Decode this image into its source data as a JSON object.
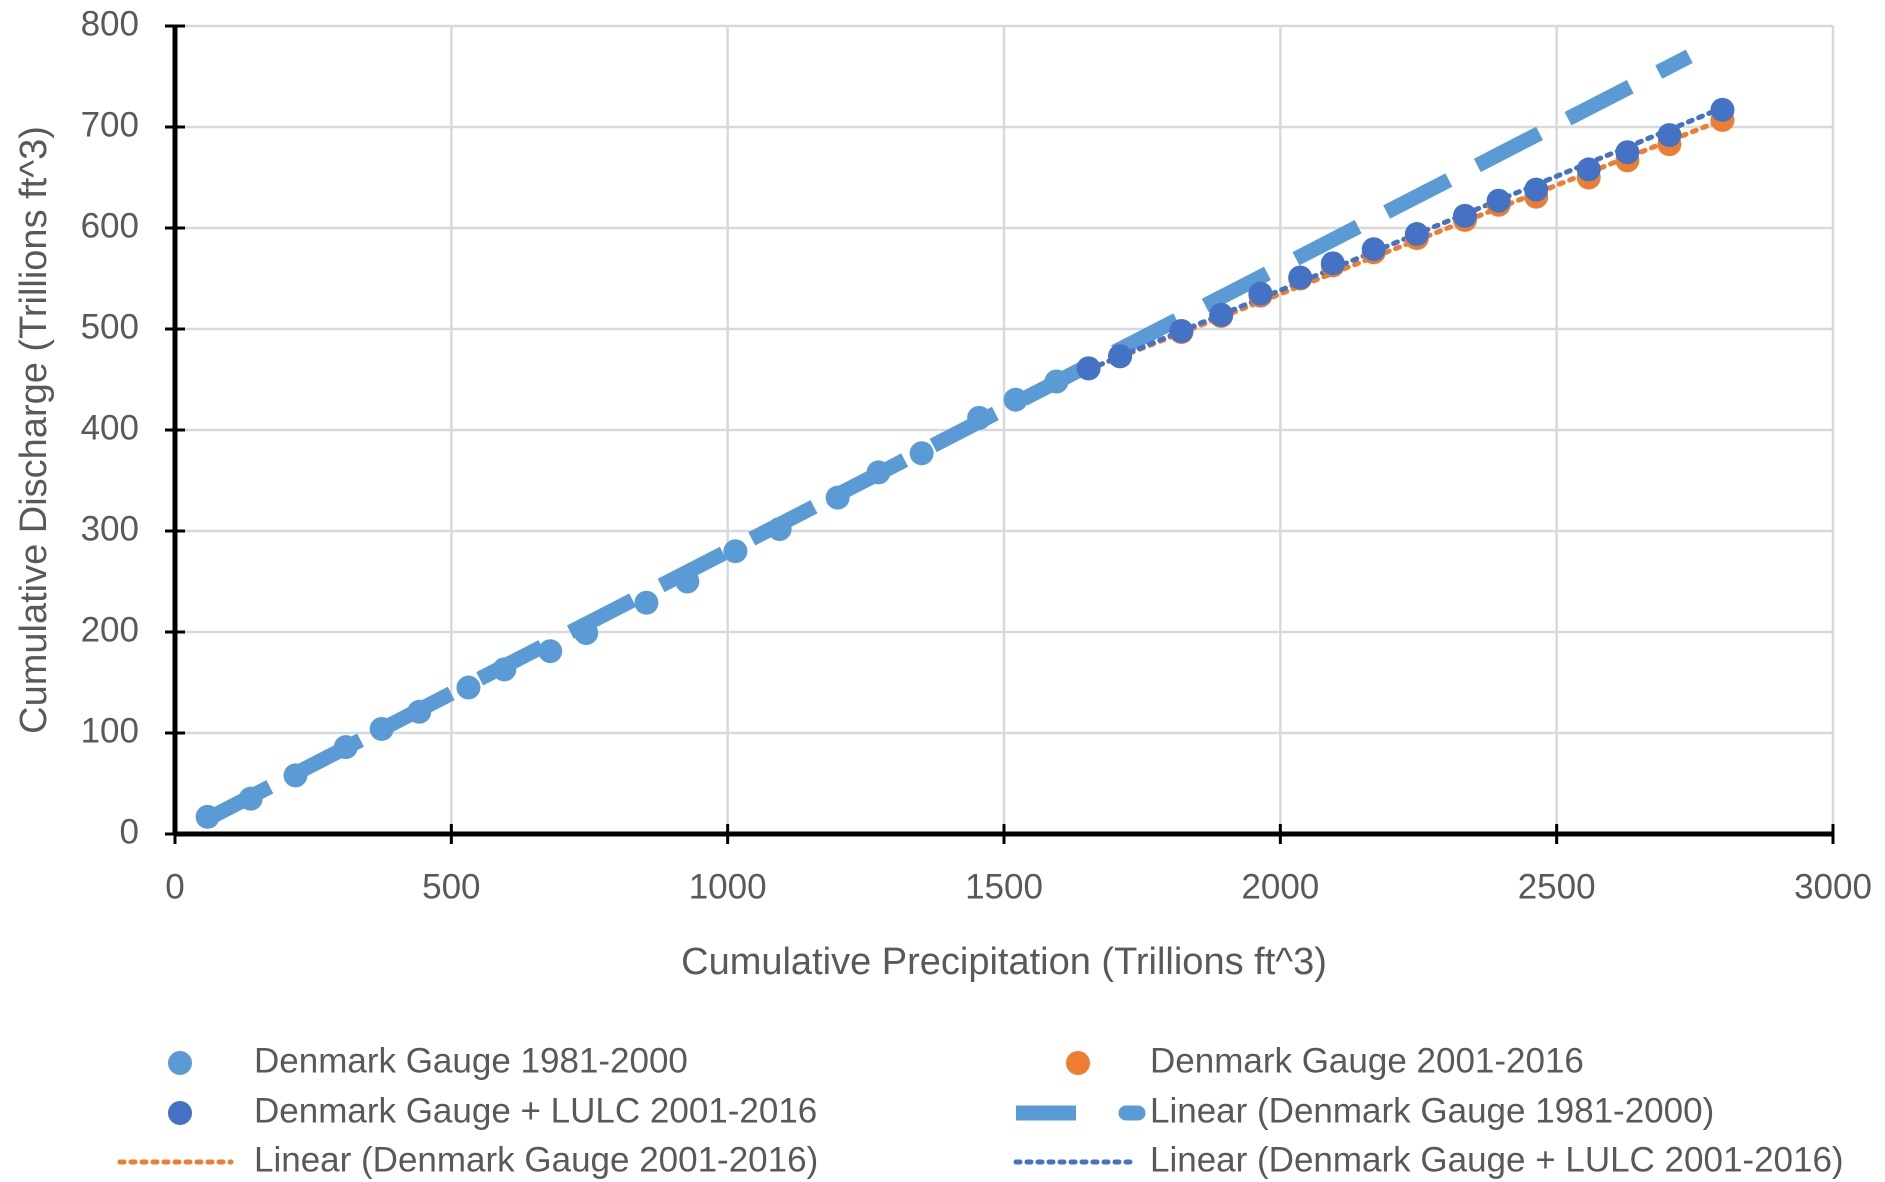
{
  "chart_data": {
    "type": "scatter",
    "xlabel": "Cumulative Precipitation (Trillions ft^3)",
    "ylabel": "Cumulative Discharge (Trillions ft^3)",
    "xlim": [
      0,
      3000
    ],
    "xticks": [
      0,
      500,
      1000,
      1500,
      2000,
      2500,
      3000
    ],
    "ylim": [
      0,
      800
    ],
    "yticks": [
      0,
      100,
      200,
      300,
      400,
      500,
      600,
      700,
      800
    ],
    "grid": true,
    "legend": "bottom",
    "series": [
      {
        "name": "Denmark Gauge 1981-2000",
        "color": "#5b9bd5",
        "style": "marker",
        "x": [
          59,
          137,
          218,
          309,
          374,
          442,
          531,
          596,
          679,
          744,
          853,
          927,
          1014,
          1094,
          1199,
          1273,
          1351,
          1455,
          1521,
          1595
        ],
        "values": [
          17,
          35,
          58,
          86,
          104,
          121,
          145,
          163,
          181,
          199,
          229,
          250,
          280,
          302,
          333,
          358,
          377,
          412,
          430,
          448
        ]
      },
      {
        "name": "Denmark Gauge 2001-2016",
        "color": "#ed7d31",
        "style": "marker",
        "x": [
          1653,
          1710,
          1821,
          1893,
          1964,
          2036,
          2095,
          2169,
          2247,
          2334,
          2395,
          2463,
          2558,
          2628,
          2704,
          2800
        ],
        "values": [
          461,
          473,
          497,
          513,
          533,
          550,
          563,
          576,
          590,
          608,
          623,
          631,
          650,
          667,
          683,
          707
        ]
      },
      {
        "name": "Denmark Gauge + LULC 2001-2016",
        "color": "#4472c4",
        "style": "marker",
        "x": [
          1653,
          1710,
          1821,
          1893,
          1964,
          2036,
          2095,
          2169,
          2247,
          2334,
          2395,
          2463,
          2558,
          2628,
          2704,
          2800
        ],
        "values": [
          461,
          473,
          498,
          514,
          535,
          551,
          565,
          579,
          594,
          612,
          627,
          638,
          658,
          675,
          692,
          717
        ]
      },
      {
        "name": "Linear (Denmark Gauge 1981-2000)",
        "color": "#5b9bd5",
        "style": "dashed",
        "x": [
          59,
          2740
        ],
        "values": [
          15,
          770
        ]
      },
      {
        "name": "Linear (Denmark Gauge 2001-2016)",
        "color": "#ed7d31",
        "style": "dotted",
        "x": [
          1653,
          2800
        ],
        "values": [
          460,
          707
        ]
      },
      {
        "name": "Linear (Denmark Gauge + LULC 2001-2016)",
        "color": "#4472c4",
        "style": "dotted",
        "x": [
          1653,
          2800
        ],
        "values": [
          460,
          719
        ]
      }
    ]
  }
}
